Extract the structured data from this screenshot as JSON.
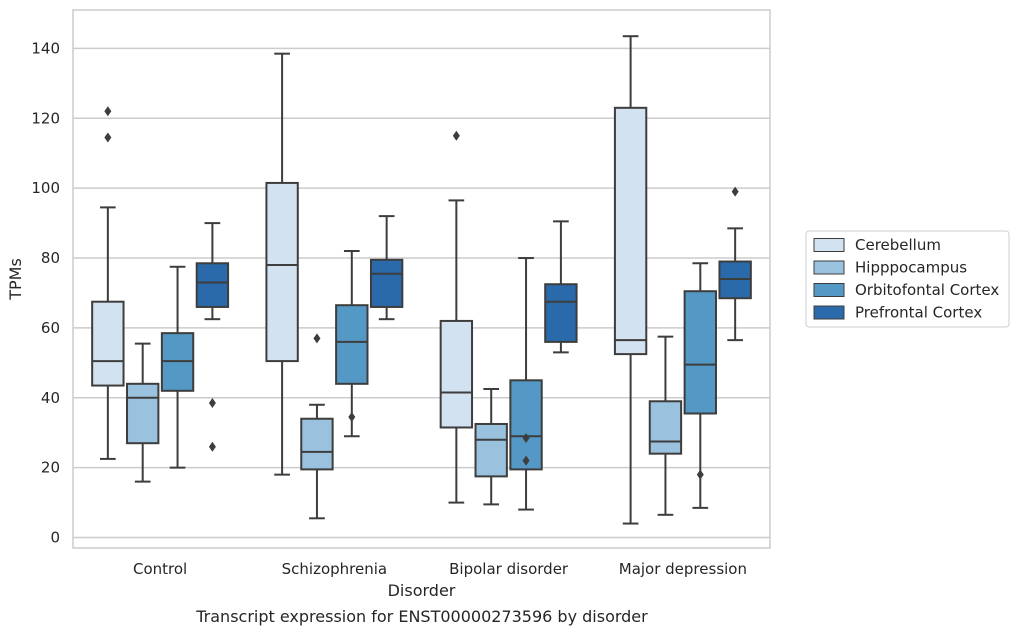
{
  "chart_data": {
    "type": "box",
    "xlabel": "Disorder",
    "ylabel": "TPMs",
    "caption": "Transcript expression for ENST00000273596 by disorder",
    "ylim": [
      -3,
      151
    ],
    "yticks": [
      0,
      20,
      40,
      60,
      80,
      100,
      120,
      140
    ],
    "grid": "horizontal",
    "legend_position": "right",
    "categories": [
      "Control",
      "Schizophrenia",
      "Bipolar disorder",
      "Major depression"
    ],
    "series": [
      {
        "name": "Cerebellum",
        "color": "#d3e2f1",
        "boxes": [
          {
            "whisker_low": 22.5,
            "q1": 43.5,
            "median": 50.5,
            "q3": 67.5,
            "whisker_high": 94.5,
            "outliers": [
              114.5,
              122
            ]
          },
          {
            "whisker_low": 18,
            "q1": 50.5,
            "median": 78,
            "q3": 101.5,
            "whisker_high": 138.5,
            "outliers": []
          },
          {
            "whisker_low": 10,
            "q1": 31.5,
            "median": 41.5,
            "q3": 62,
            "whisker_high": 96.5,
            "outliers": [
              115
            ]
          },
          {
            "whisker_low": 4,
            "q1": 52.5,
            "median": 56.5,
            "q3": 123,
            "whisker_high": 143.5,
            "outliers": []
          }
        ]
      },
      {
        "name": "Hipppocampus",
        "color": "#9ac1dd",
        "boxes": [
          {
            "whisker_low": 16,
            "q1": 27,
            "median": 40,
            "q3": 44,
            "whisker_high": 55.5,
            "outliers": []
          },
          {
            "whisker_low": 5.5,
            "q1": 19.5,
            "median": 24.5,
            "q3": 34,
            "whisker_high": 38,
            "outliers": [
              57
            ]
          },
          {
            "whisker_low": 9.5,
            "q1": 17.5,
            "median": 28,
            "q3": 32.5,
            "whisker_high": 42.5,
            "outliers": []
          },
          {
            "whisker_low": 6.5,
            "q1": 24,
            "median": 27.5,
            "q3": 39,
            "whisker_high": 57.5,
            "outliers": []
          }
        ]
      },
      {
        "name": "Orbitofontal Cortex",
        "color": "#5499c6",
        "boxes": [
          {
            "whisker_low": 20,
            "q1": 42,
            "median": 50.5,
            "q3": 58.5,
            "whisker_high": 77.5,
            "outliers": []
          },
          {
            "whisker_low": 29,
            "q1": 44,
            "median": 56,
            "q3": 66.5,
            "whisker_high": 82,
            "outliers": [
              34.5
            ]
          },
          {
            "whisker_low": 8,
            "q1": 19.5,
            "median": 29,
            "q3": 45,
            "whisker_high": 80,
            "outliers": [
              22,
              28.5
            ]
          },
          {
            "whisker_low": 8.5,
            "q1": 35.5,
            "median": 49.5,
            "q3": 70.5,
            "whisker_high": 78.5,
            "outliers": [
              18
            ]
          }
        ]
      },
      {
        "name": "Prefrontal Cortex",
        "color": "#2a6aab",
        "boxes": [
          {
            "whisker_low": 62.5,
            "q1": 66,
            "median": 73,
            "q3": 78.5,
            "whisker_high": 90,
            "outliers": [
              26,
              38.5
            ]
          },
          {
            "whisker_low": 62.5,
            "q1": 66,
            "median": 75.5,
            "q3": 79.5,
            "whisker_high": 92,
            "outliers": []
          },
          {
            "whisker_low": 53,
            "q1": 56,
            "median": 67.5,
            "q3": 72.5,
            "whisker_high": 90.5,
            "outliers": []
          },
          {
            "whisker_low": 56.5,
            "q1": 68.5,
            "median": 74,
            "q3": 79,
            "whisker_high": 88.5,
            "outliers": [
              99
            ]
          }
        ]
      }
    ]
  }
}
